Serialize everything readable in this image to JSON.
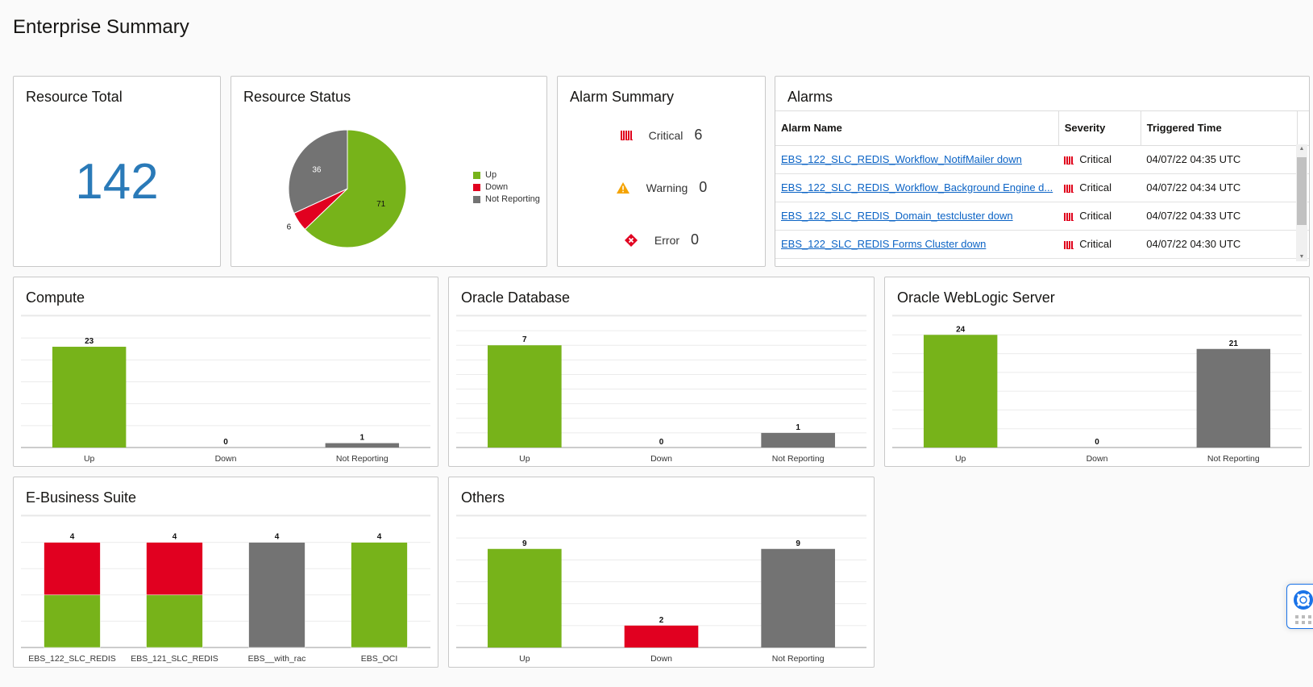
{
  "page_title": "Enterprise Summary",
  "resource_total": {
    "title": "Resource Total",
    "value": "142"
  },
  "resource_status": {
    "title": "Resource Status",
    "legend": [
      {
        "label": "Up",
        "color": "#77b31a"
      },
      {
        "label": "Down",
        "color": "#e10020"
      },
      {
        "label": "Not Reporting",
        "color": "#737373"
      }
    ],
    "chart_data": {
      "type": "pie",
      "labels": [
        "Up",
        "Down",
        "Not Reporting"
      ],
      "values": [
        71,
        6,
        36
      ]
    }
  },
  "alarm_summary": {
    "title": "Alarm Summary",
    "items": [
      {
        "label": "Critical",
        "count": "6",
        "icon": "critical-icon"
      },
      {
        "label": "Warning",
        "count": "0",
        "icon": "warning-icon"
      },
      {
        "label": "Error",
        "count": "0",
        "icon": "error-icon"
      }
    ]
  },
  "alarms": {
    "title": "Alarms",
    "columns": [
      "Alarm Name",
      "Severity",
      "Triggered Time"
    ],
    "rows": [
      {
        "name": "EBS_122_SLC_REDIS_Workflow_NotifMailer down",
        "severity": "Critical",
        "time": "04/07/22 04:35 UTC"
      },
      {
        "name": "EBS_122_SLC_REDIS_Workflow_Background Engine d...",
        "severity": "Critical",
        "time": "04/07/22 04:34 UTC"
      },
      {
        "name": "EBS_122_SLC_REDIS_Domain_testcluster down",
        "severity": "Critical",
        "time": "04/07/22 04:33 UTC"
      },
      {
        "name": "EBS_122_SLC_REDIS Forms Cluster down",
        "severity": "Critical",
        "time": "04/07/22 04:30 UTC"
      }
    ]
  },
  "colors": {
    "up": "#77b31a",
    "down": "#e10020",
    "not_reporting": "#737373"
  },
  "chart_data": [
    {
      "title": "Compute",
      "type": "bar",
      "categories": [
        "Up",
        "Down",
        "Not Reporting"
      ],
      "values": [
        23,
        0,
        1
      ],
      "ylim": [
        0,
        30
      ],
      "ystep": 5
    },
    {
      "title": "Oracle Database",
      "type": "bar",
      "categories": [
        "Up",
        "Down",
        "Not Reporting"
      ],
      "values": [
        7,
        0,
        1
      ],
      "ylim": [
        0,
        9
      ],
      "ystep": 1
    },
    {
      "title": "Oracle WebLogic Server",
      "type": "bar",
      "categories": [
        "Up",
        "Down",
        "Not Reporting"
      ],
      "values": [
        24,
        0,
        21
      ],
      "ylim": [
        0,
        28
      ],
      "ystep": 4
    },
    {
      "title": "E-Business Suite",
      "type": "stacked-bar",
      "categories": [
        "EBS_122_SLC_REDIS",
        "EBS_121_SLC_REDIS",
        "EBS__with_rac",
        "EBS_OCI"
      ],
      "series": [
        {
          "name": "Up",
          "values": [
            2,
            2,
            0,
            4
          ]
        },
        {
          "name": "Down",
          "values": [
            2,
            2,
            0,
            0
          ]
        },
        {
          "name": "Not Reporting",
          "values": [
            0,
            0,
            4,
            0
          ]
        }
      ],
      "totals": [
        4,
        4,
        4,
        4
      ],
      "ylim": [
        0,
        5
      ],
      "ystep": 1
    },
    {
      "title": "Others",
      "type": "bar",
      "categories": [
        "Up",
        "Down",
        "Not Reporting"
      ],
      "values": [
        9,
        2,
        9
      ],
      "ylim": [
        0,
        12
      ],
      "ystep": 2
    }
  ]
}
